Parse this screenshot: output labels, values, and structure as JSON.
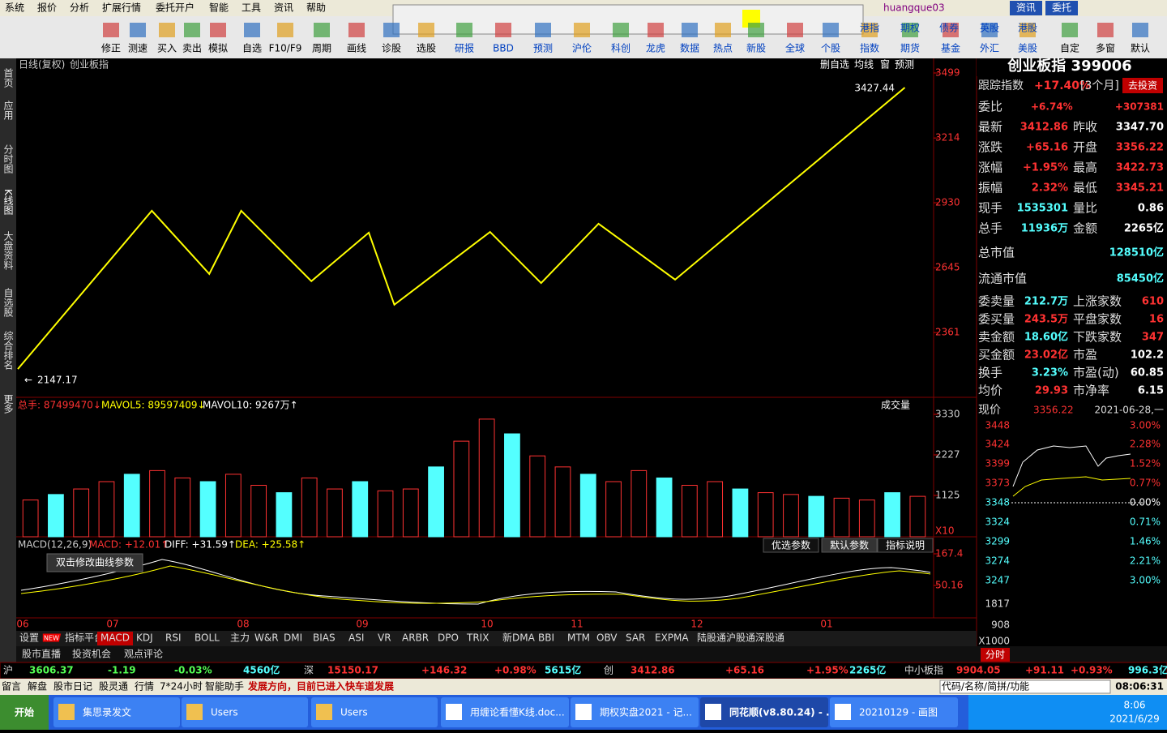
{
  "menu": [
    "系统",
    "报价",
    "分析",
    "扩展行情",
    "委托开户",
    "智能",
    "工具",
    "资讯",
    "帮助"
  ],
  "user": "huangque03",
  "top_buttons": [
    "资讯",
    "委托"
  ],
  "toolbar": {
    "bottom": [
      "修正",
      "测速",
      "买入",
      "卖出",
      "模拟",
      "自选",
      "F10/F9",
      "周期",
      "画线",
      "诊股",
      "选股",
      "研报",
      "BBD",
      "预测",
      "沪伦",
      "科创",
      "龙虎",
      "数据",
      "热点",
      "新股",
      "全球",
      "个股",
      "指数",
      "期货",
      "基金",
      "外汇",
      "美股",
      "自定",
      "多窗",
      "默认"
    ],
    "top": [
      "港指",
      "期权",
      "债券",
      "英股",
      "港股"
    ]
  },
  "sidebar": [
    "首页",
    "应用",
    "分时图",
    "K线图",
    "大盘资料",
    "自选股",
    "综合排名",
    "更多"
  ],
  "chart_header": {
    "period": "日线(复权)",
    "name": "创业板指",
    "buttons": [
      "删自选",
      "均线",
      "窗",
      "预测"
    ]
  },
  "price_chart": {
    "type": "line",
    "color": "#ffff00",
    "x": [
      0,
      21,
      30,
      35,
      46,
      55,
      59,
      74,
      82,
      91,
      103,
      139
    ],
    "values": [
      2201,
      2895,
      2618,
      2895,
      2586,
      2799,
      2483,
      2802,
      2578,
      2838,
      2593,
      3435
    ],
    "xlim": [
      0,
      143
    ],
    "ylim": [
      2077,
      3499
    ],
    "yticks": [
      3499,
      3214,
      2930,
      2645,
      2361
    ],
    "high_label": 3427.44,
    "low_label": 2147.17,
    "months": [
      "06",
      "07",
      "08",
      "09",
      "10",
      "11",
      "12",
      "01"
    ]
  },
  "volume_chart": {
    "type": "bar",
    "legend": [
      "总手: 87499470↓",
      "MAVOL5: 89597409↓",
      "MAVOL10: 9267万↑"
    ],
    "selector": "成交量",
    "unit": "X10",
    "up_color": "#ff3232",
    "down_color": "#54ffff",
    "values": [
      1000,
      1150,
      1300,
      1500,
      1700,
      1800,
      1600,
      1500,
      1700,
      1400,
      1200,
      1600,
      1300,
      1500,
      1250,
      1300,
      1900,
      2600,
      3200,
      2800,
      2200,
      1900,
      1700,
      1500,
      1800,
      1600,
      1400,
      1500,
      1300,
      1200,
      1150,
      1100,
      1050,
      1000,
      1200,
      1100
    ],
    "ylim": [
      0,
      3793
    ],
    "yticks": [
      3330,
      2227,
      1125
    ]
  },
  "macd_chart": {
    "legend": [
      "MACD(12,26,9)",
      "MACD: +12.01↑",
      "DIFF: +31.59↑",
      "DEA: +25.58↑"
    ],
    "ylim": [
      -70.1,
      230.5
    ],
    "yticks": [
      167.4,
      50.16
    ],
    "buttons": [
      "优选参数",
      "默认参数",
      "指标说明"
    ],
    "tooltip": "双击修改曲线参数"
  },
  "indicator_tabs": [
    "设置",
    "NEW",
    "指标平台",
    "MACD",
    "KDJ",
    "RSI",
    "BOLL",
    "主力",
    "W&R",
    "DMI",
    "BIAS",
    "ASI",
    "VR",
    "ARBR",
    "DPO",
    "TRIX",
    "新DMA",
    "BBI",
    "MTM",
    "OBV",
    "SAR",
    "EXPMA",
    "陆股通",
    "沪股通",
    "深股通"
  ],
  "sub_tabs": [
    "股市直播",
    "投资机会",
    "观点评论"
  ],
  "quote": {
    "title": "创业板指 399006",
    "track": [
      "跟踪指数",
      "+17.40%",
      "[3个月]",
      "去投资"
    ],
    "ratio": [
      "委比",
      "+6.74%",
      "+307381"
    ],
    "rows": [
      [
        "最新",
        "3412.86",
        "昨收",
        "3347.70"
      ],
      [
        "涨跌",
        "+65.16",
        "开盘",
        "3356.22"
      ],
      [
        "涨幅",
        "+1.95%",
        "最高",
        "3422.73"
      ],
      [
        "振幅",
        "2.32%",
        "最低",
        "3345.21"
      ],
      [
        "现手",
        "1535301",
        "量比",
        "0.86"
      ],
      [
        "总手",
        "11936万",
        "金额",
        "2265亿"
      ]
    ],
    "caps": [
      [
        "总市值",
        "128510亿"
      ],
      [
        "流通市值",
        "85450亿"
      ]
    ],
    "stats": [
      [
        "委卖量",
        "212.7万",
        "上涨家数",
        "610"
      ],
      [
        "委买量",
        "243.5万",
        "平盘家数",
        "16"
      ],
      [
        "卖金额",
        "18.60亿",
        "下跌家数",
        "347"
      ],
      [
        "买金额",
        "23.02亿",
        "市盈",
        "102.2"
      ],
      [
        "换手",
        "3.23%",
        "市盈(动)",
        "60.85"
      ],
      [
        "均价",
        "29.93",
        "市净率",
        "6.15"
      ]
    ]
  },
  "intraday": {
    "price_label": "现价",
    "price": "3356.22",
    "date": "2021-06-28,一",
    "left": [
      "3448",
      "3424",
      "3399",
      "3373",
      "3348",
      "3324",
      "3299",
      "3274",
      "3247",
      "1817",
      "908",
      "X1000"
    ],
    "right": [
      "3.00%",
      "2.28%",
      "1.52%",
      "0.77%",
      "0.00%",
      "0.71%",
      "1.46%",
      "2.21%",
      "3.00%"
    ],
    "tab": "分时"
  },
  "status": [
    [
      "沪",
      "3606.37",
      "-1.19",
      "-0.03%",
      "4560亿"
    ],
    [
      "深",
      "15150.17",
      "+146.32",
      "+0.98%",
      "5615亿"
    ],
    [
      "创",
      "3412.86",
      "+65.16",
      "+1.95%",
      "2265亿"
    ],
    [
      "中小板指",
      "9904.05",
      "+91.11",
      "+0.93%",
      "996.3亿"
    ]
  ],
  "bottom": {
    "links": [
      "留言",
      "解盘",
      "股市日记",
      "股灵通",
      "行情",
      "7*24小时",
      "智能助手"
    ],
    "news": "发展方向，目前已进入快车道发展",
    "search": "代码/名称/简拼/功能",
    "clock": "08:06:31"
  },
  "taskbar": {
    "start": "开始",
    "items": [
      "集思录发文",
      "Users",
      "Users",
      "用缠论看懂K线.doc...",
      "期权实盘2021 - 记...",
      "同花顺(v8.80.24) - ...",
      "20210129 - 画图"
    ],
    "time": "8:06",
    "date": "2021/6/29"
  }
}
